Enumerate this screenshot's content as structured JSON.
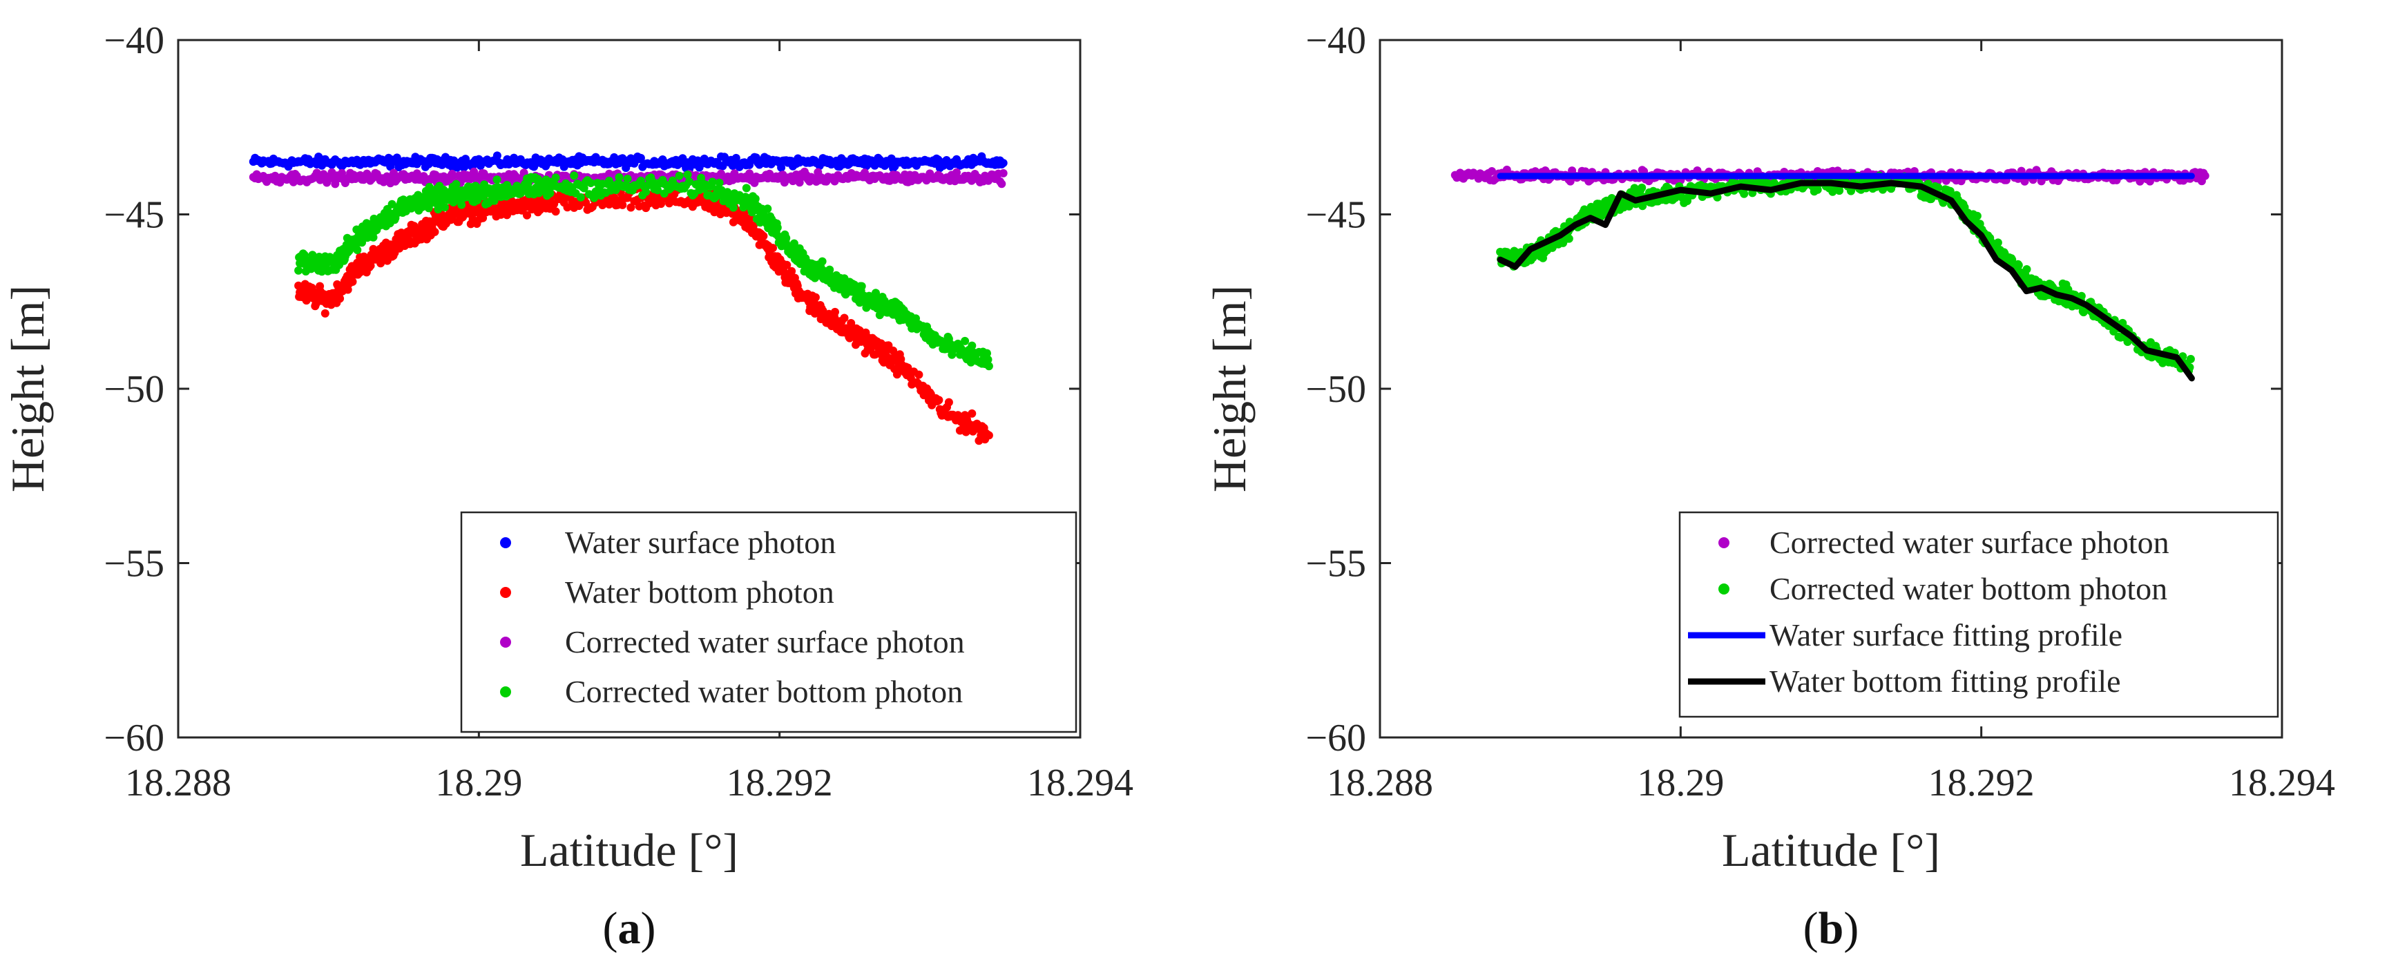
{
  "chart_data": [
    {
      "panel_label": "(a)",
      "panel_letter": "a",
      "type": "scatter",
      "xlabel": "Latitude [°]",
      "ylabel": "Height [m]",
      "xlim": [
        18.288,
        18.294
      ],
      "ylim": [
        -60,
        -40
      ],
      "xticks": [
        18.288,
        18.29,
        18.292,
        18.294
      ],
      "xtick_labels": [
        "18.288",
        "18.29",
        "18.292",
        "18.294"
      ],
      "yticks": [
        -60,
        -55,
        -50,
        -45,
        -40
      ],
      "ytick_labels": [
        "−60",
        "−55",
        "−50",
        "−45",
        "−40"
      ],
      "legend_position": "bottom-right",
      "series": [
        {
          "name": "Water surface photon",
          "kind": "points",
          "color": "#0000ff",
          "noise": 0.12,
          "x": [
            18.2885,
            18.289,
            18.2895,
            18.29,
            18.2905,
            18.291,
            18.2915,
            18.292,
            18.2925,
            18.293,
            18.2935
          ],
          "y": [
            -43.5,
            -43.5,
            -43.5,
            -43.5,
            -43.5,
            -43.5,
            -43.5,
            -43.5,
            -43.5,
            -43.5,
            -43.5
          ]
        },
        {
          "name": "Water bottom photon",
          "kind": "points",
          "color": "#ff0000",
          "noise": 0.25,
          "x": [
            18.2888,
            18.289,
            18.2892,
            18.2894,
            18.2896,
            18.2898,
            18.29,
            18.2902,
            18.2905,
            18.291,
            18.2915,
            18.2918,
            18.292,
            18.2922,
            18.2924,
            18.2926,
            18.2928,
            18.2931,
            18.2934
          ],
          "y": [
            -47.2,
            -47.5,
            -46.5,
            -46.0,
            -45.5,
            -45.0,
            -44.9,
            -44.8,
            -44.7,
            -44.6,
            -44.6,
            -45.2,
            -46.5,
            -47.5,
            -48.2,
            -48.7,
            -49.3,
            -50.7,
            -51.3
          ]
        },
        {
          "name": "Corrected water surface photon",
          "kind": "points",
          "color": "#b000c8",
          "noise": 0.12,
          "x": [
            18.2885,
            18.289,
            18.2895,
            18.29,
            18.2905,
            18.291,
            18.2915,
            18.292,
            18.2925,
            18.293,
            18.2935
          ],
          "y": [
            -43.95,
            -43.95,
            -43.95,
            -43.95,
            -43.95,
            -43.95,
            -43.95,
            -43.95,
            -43.95,
            -43.95,
            -43.95
          ]
        },
        {
          "name": "Corrected water bottom photon",
          "kind": "points",
          "color": "#00d000",
          "noise": 0.25,
          "x": [
            18.2888,
            18.289,
            18.2892,
            18.2894,
            18.2896,
            18.2898,
            18.29,
            18.2902,
            18.2905,
            18.291,
            18.2915,
            18.2918,
            18.292,
            18.2922,
            18.2924,
            18.2926,
            18.2928,
            18.2931,
            18.2934
          ],
          "y": [
            -46.3,
            -46.5,
            -45.7,
            -45.0,
            -44.6,
            -44.5,
            -44.4,
            -44.3,
            -44.2,
            -44.2,
            -44.2,
            -44.6,
            -45.6,
            -46.5,
            -47.0,
            -47.4,
            -47.8,
            -48.8,
            -49.2
          ]
        }
      ]
    },
    {
      "panel_label": "(b)",
      "panel_letter": "b",
      "type": "scatter",
      "xlabel": "Latitude [°]",
      "ylabel": "Height [m]",
      "xlim": [
        18.288,
        18.294
      ],
      "ylim": [
        -60,
        -40
      ],
      "xticks": [
        18.288,
        18.29,
        18.292,
        18.294
      ],
      "xtick_labels": [
        "18.288",
        "18.29",
        "18.292",
        "18.294"
      ],
      "yticks": [
        -60,
        -55,
        -50,
        -45,
        -40
      ],
      "ytick_labels": [
        "−60",
        "−55",
        "−50",
        "−45",
        "−40"
      ],
      "legend_position": "bottom-right",
      "series": [
        {
          "name": "Corrected water surface photon",
          "kind": "points",
          "color": "#b000c8",
          "noise": 0.12,
          "x": [
            18.2885,
            18.289,
            18.2895,
            18.29,
            18.2905,
            18.291,
            18.2915,
            18.292,
            18.2925,
            18.293,
            18.2935
          ],
          "y": [
            -43.9,
            -43.9,
            -43.9,
            -43.9,
            -43.9,
            -43.9,
            -43.9,
            -43.9,
            -43.9,
            -43.9,
            -43.9
          ]
        },
        {
          "name": "Corrected water bottom photon",
          "kind": "points",
          "color": "#00d000",
          "noise": 0.22,
          "x": [
            18.2888,
            18.289,
            18.2892,
            18.2894,
            18.2896,
            18.2898,
            18.29,
            18.2905,
            18.291,
            18.2915,
            18.2918,
            18.292,
            18.2922,
            18.2924,
            18.2926,
            18.2928,
            18.2931,
            18.2934
          ],
          "y": [
            -46.3,
            -46.2,
            -45.6,
            -45.0,
            -44.6,
            -44.5,
            -44.4,
            -44.2,
            -44.1,
            -44.1,
            -44.5,
            -45.5,
            -46.5,
            -47.1,
            -47.4,
            -47.9,
            -48.9,
            -49.3
          ]
        },
        {
          "name": "Water surface fitting profile",
          "kind": "line",
          "color": "#0000ff",
          "width": 9,
          "x": [
            18.2888,
            18.2934
          ],
          "y": [
            -43.9,
            -43.9
          ]
        },
        {
          "name": "Water bottom fitting profile",
          "kind": "line",
          "color": "#000000",
          "width": 9,
          "x": [
            18.2888,
            18.2889,
            18.289,
            18.2891,
            18.2892,
            18.2893,
            18.2894,
            18.2895,
            18.2896,
            18.2897,
            18.2898,
            18.29,
            18.2902,
            18.2904,
            18.2906,
            18.2908,
            18.291,
            18.2912,
            18.2914,
            18.2916,
            18.2918,
            18.2919,
            18.292,
            18.2921,
            18.2922,
            18.2923,
            18.2924,
            18.2925,
            18.2926,
            18.2927,
            18.2928,
            18.2929,
            18.293,
            18.2931,
            18.2932,
            18.2933,
            18.2934
          ],
          "y": [
            -46.3,
            -46.5,
            -46.0,
            -45.8,
            -45.6,
            -45.3,
            -45.1,
            -45.3,
            -44.4,
            -44.6,
            -44.5,
            -44.3,
            -44.4,
            -44.2,
            -44.3,
            -44.1,
            -44.1,
            -44.2,
            -44.1,
            -44.2,
            -44.6,
            -45.2,
            -45.6,
            -46.3,
            -46.6,
            -47.2,
            -47.1,
            -47.3,
            -47.4,
            -47.6,
            -47.9,
            -48.2,
            -48.5,
            -48.9,
            -49.0,
            -49.1,
            -49.7
          ]
        }
      ]
    }
  ]
}
